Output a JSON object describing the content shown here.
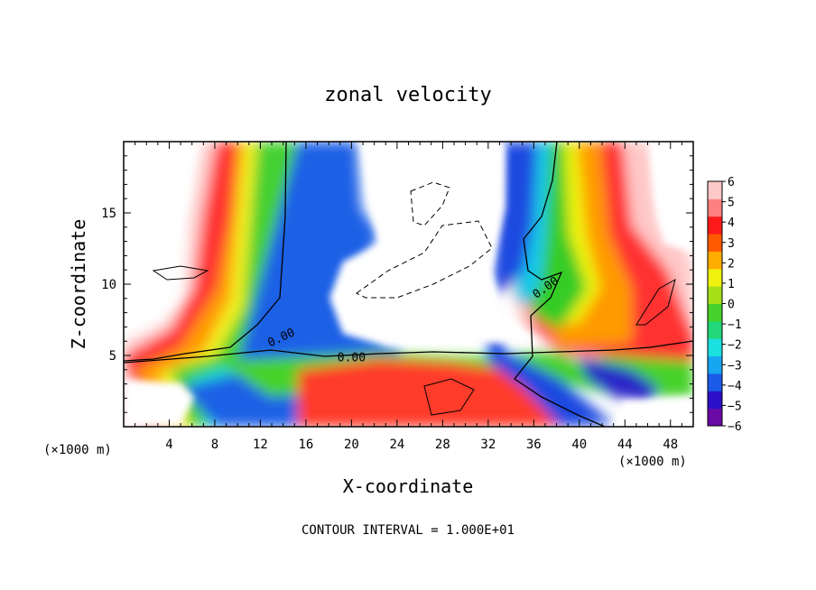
{
  "chart_data": {
    "type": "heatmap",
    "title": "zonal velocity",
    "xlabel": "X-coordinate",
    "ylabel": "Z-coordinate",
    "x_unit_left": "(×1000 m)",
    "x_unit_right": "(×1000 m)",
    "footer": "CONTOUR INTERVAL = 1.000E+01",
    "xlim": [
      0,
      50
    ],
    "ylim": [
      0,
      20
    ],
    "x_ticks": [
      4,
      8,
      12,
      16,
      20,
      24,
      28,
      32,
      36,
      40,
      44,
      48
    ],
    "y_ticks": [
      5,
      10,
      15
    ],
    "colorbar": {
      "min": -6,
      "max": 6,
      "ticks": [
        6,
        5,
        4,
        3,
        2,
        1,
        0,
        -1,
        -2,
        -3,
        -4,
        -5,
        -6
      ],
      "colors": [
        "#6a0aa6",
        "#2b10c8",
        "#1c5ae8",
        "#16a6f2",
        "#1ae0e0",
        "#22d87a",
        "#46d22a",
        "#a6e018",
        "#eef20e",
        "#ffae00",
        "#ff5a00",
        "#ff1a1a",
        "#ff8080",
        "#ffc8c8"
      ]
    },
    "contour_labels": [
      {
        "text": "0.00",
        "x": 13.8,
        "y": 6.3
      },
      {
        "text": "0.00",
        "x": 20.0,
        "y": 4.9
      },
      {
        "text": "0.00",
        "x": 37.0,
        "y": 9.8
      }
    ],
    "features": [
      {
        "name": "positive plume west",
        "x_center": 10,
        "value": 4
      },
      {
        "name": "zero line west",
        "x_center": 14,
        "value": 0
      },
      {
        "name": "negative plume",
        "x_center": 18,
        "value": -5
      },
      {
        "name": "negative plume east",
        "x_center": 35,
        "value": -5
      },
      {
        "name": "zero line east",
        "x_center": 38,
        "value": 0
      },
      {
        "name": "positive plume east",
        "x_center": 42,
        "value": 4
      }
    ]
  }
}
